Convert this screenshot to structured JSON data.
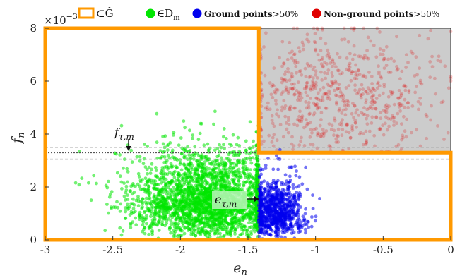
{
  "chart_data": {
    "type": "scatter",
    "xlabel": "e",
    "xlabel_sub": "n",
    "ylabel": "f",
    "ylabel_sub": "n",
    "xlim": [
      -3,
      0
    ],
    "ylim": [
      0,
      0.008
    ],
    "xticks": [
      -3,
      -2.5,
      -2,
      -1.5,
      -1,
      -0.5,
      0
    ],
    "xtick_labels": [
      "-3",
      "-2.5",
      "-2",
      "-1.5",
      "-1",
      "-0.5",
      "0"
    ],
    "yticks": [
      0,
      0.002,
      0.004,
      0.006,
      0.008
    ],
    "ytick_labels": [
      "0",
      "2",
      "4",
      "6",
      "8"
    ],
    "y_multiplier": "×10",
    "y_multiplier_exp": "−3",
    "legend": {
      "placement": "top",
      "box_label": "⊂Ĝ",
      "dm_label": "∈D",
      "dm_sub": "m",
      "ground_label": "Ground points",
      "ground_suffix": ">50%",
      "nonground_label": "Non-ground points",
      "nonground_suffix": ">50%"
    },
    "thresholds": {
      "e_tau_m": -1.42,
      "f_tau_m": 0.0033,
      "f_band": [
        0.00305,
        0.0035
      ]
    },
    "annotations": {
      "f_label": "f",
      "f_sub": "τ,m",
      "e_label": "e",
      "e_sub": "τ,m"
    },
    "series": [
      {
        "name": "∈D_m",
        "color": "#00e600",
        "cluster": {
          "x_mean": -1.8,
          "x_sd": 0.28,
          "x_max": -1.42,
          "y_mean": 0.0015,
          "y_sd": 0.0013,
          "y_max": 0.0058
        }
      },
      {
        "name": "Ground points >50%",
        "color": "#0000ee",
        "cluster": {
          "x_mean": -1.3,
          "x_sd": 0.1,
          "x_min": -1.42,
          "y_mean": 0.0011,
          "y_sd": 0.0009,
          "y_max": 0.0038
        }
      },
      {
        "name": "Non-ground points >50%",
        "color": "#e00000",
        "cluster": {
          "x_mean": -0.85,
          "x_sd": 0.35,
          "x_min": -1.42,
          "y_mean": 0.0055,
          "y_sd": 0.0012,
          "y_min": 0.0033
        }
      }
    ],
    "region_G": [
      {
        "from": [
          -3,
          0
        ],
        "to": [
          -1.42,
          0.008
        ]
      },
      {
        "from": [
          -1.42,
          0
        ],
        "to": [
          0,
          0.0033
        ]
      }
    ],
    "colors": {
      "box": "#ff9900",
      "gray_region": "#cccccc",
      "threshold_line": "#555555",
      "band_line": "#aaaaaa"
    }
  }
}
